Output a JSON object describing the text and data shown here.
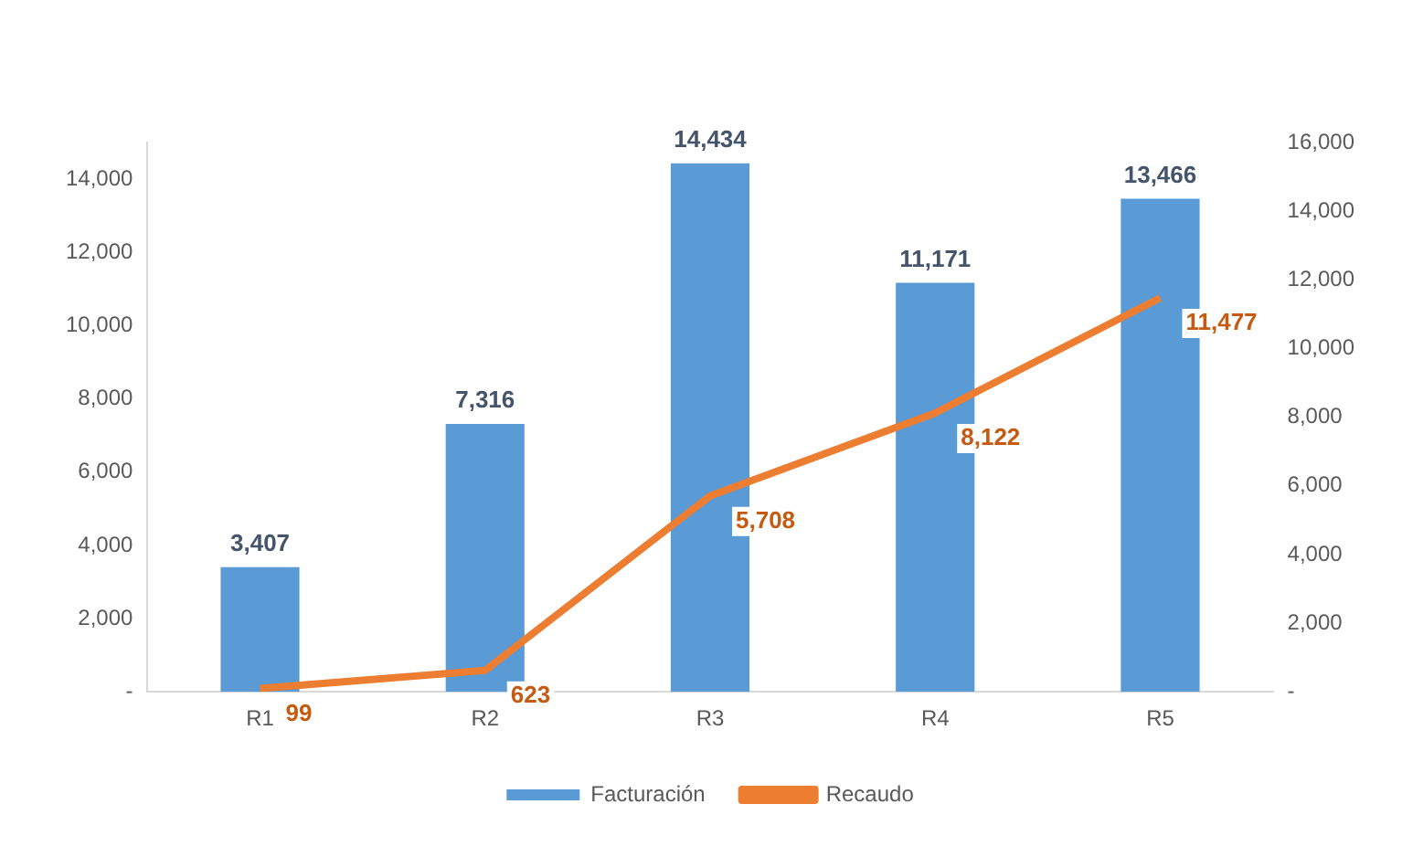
{
  "chart_data": {
    "type": "bar",
    "categories": [
      "R1",
      "R2",
      "R3",
      "R4",
      "R5"
    ],
    "series": [
      {
        "name": "Facturación",
        "color": "#5b9bd5",
        "values": [
          3407,
          7316,
          14434,
          11171,
          13466
        ],
        "value_labels": [
          "3,407",
          "7,316",
          "14,434",
          "11,171",
          "13,466"
        ]
      },
      {
        "name": "Recaudo",
        "type": "line",
        "axis": "y2",
        "color": "#ed7d31",
        "values": [
          99,
          623,
          5708,
          8122,
          11477
        ],
        "value_labels": [
          "99",
          "623",
          "5,708",
          "8,122",
          "11,477"
        ]
      }
    ],
    "ylim": [
      0,
      15000
    ],
    "yticks": [
      {
        "value": 0,
        "label": "-"
      },
      {
        "value": 2000,
        "label": "2,000"
      },
      {
        "value": 4000,
        "label": "4,000"
      },
      {
        "value": 6000,
        "label": "6,000"
      },
      {
        "value": 8000,
        "label": "8,000"
      },
      {
        "value": 10000,
        "label": "10,000"
      },
      {
        "value": 12000,
        "label": "12,000"
      },
      {
        "value": 14000,
        "label": "14,000"
      }
    ],
    "y2lim": [
      0,
      16000
    ],
    "y2ticks": [
      {
        "value": 0,
        "label": "-"
      },
      {
        "value": 2000,
        "label": "2,000"
      },
      {
        "value": 4000,
        "label": "4,000"
      },
      {
        "value": 6000,
        "label": "6,000"
      },
      {
        "value": 8000,
        "label": "8,000"
      },
      {
        "value": 10000,
        "label": "10,000"
      },
      {
        "value": 12000,
        "label": "12,000"
      },
      {
        "value": 14000,
        "label": "14,000"
      },
      {
        "value": 16000,
        "label": "16,000"
      }
    ],
    "grid": false,
    "legend": "bottom",
    "marker": "none",
    "line_style": "solid"
  }
}
